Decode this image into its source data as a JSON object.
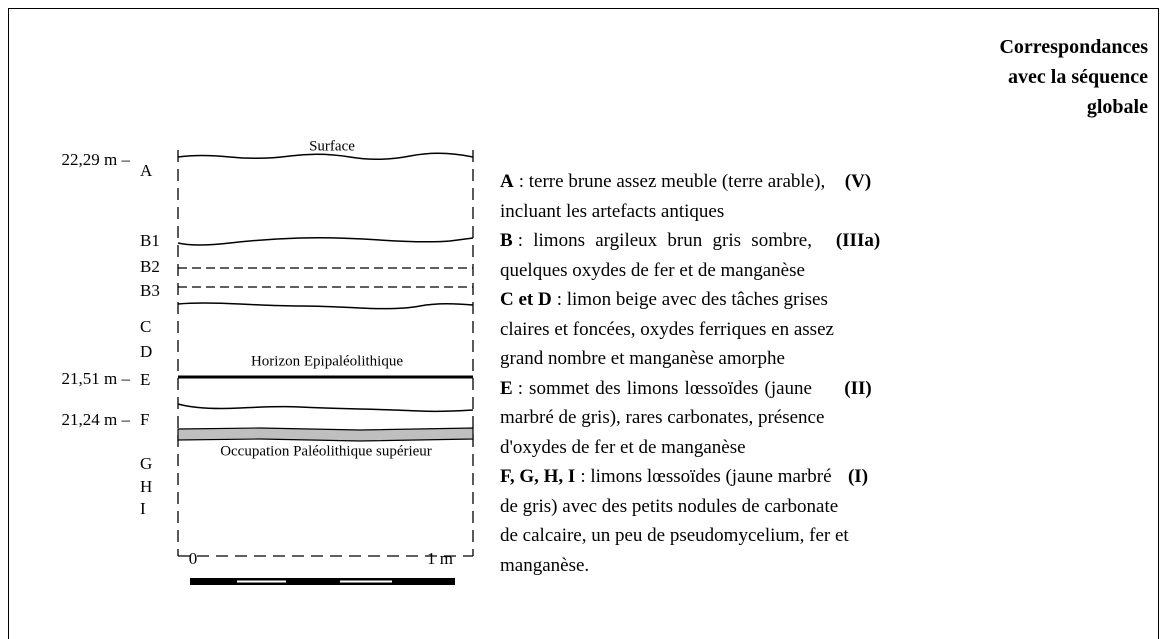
{
  "header": {
    "lines": [
      "Correspondances",
      "avec la séquence",
      "globale"
    ]
  },
  "depths": [
    "22,29 m –",
    "21,51 m –",
    "21,24 m –"
  ],
  "layers": [
    "A",
    "B1",
    "B2",
    "B3",
    "C",
    "D",
    "E",
    "F",
    "G",
    "H",
    "I"
  ],
  "horizons": {
    "surface": "Surface",
    "epi": "Horizon Epipaléolithique",
    "paleo": "Occupation Paléolithique supérieur"
  },
  "scale": {
    "start": "0",
    "end": "1 m"
  },
  "descriptions": [
    {
      "key": "A",
      "lines": [
        ": terre brune assez meuble (terre arable),",
        "incluant les artefacts antiques"
      ],
      "code": "(V)"
    },
    {
      "key": "B",
      "lines": [
        ": limons argileux brun gris sombre,",
        "quelques oxydes de fer et de manganèse"
      ],
      "code": "(IIIa)"
    },
    {
      "key": "C et D",
      "lines": [
        ": limon beige avec des tâches grises",
        "claires et foncées, oxydes ferriques en assez",
        "grand nombre et manganèse amorphe"
      ]
    },
    {
      "key": "E",
      "lines": [
        ": sommet des limons lœssoïdes (jaune",
        "marbré de gris), rares carbonates, présence",
        "d'oxydes de fer et de manganèse"
      ],
      "code": "(II)"
    },
    {
      "key": "F, G, H, I",
      "lines": [
        ": limons lœssoïdes (jaune marbré",
        "de gris) avec des petits nodules de carbonate",
        "de calcaire, un peu de pseudomycelium, fer et",
        "manganèse."
      ],
      "code": "(I)"
    }
  ]
}
